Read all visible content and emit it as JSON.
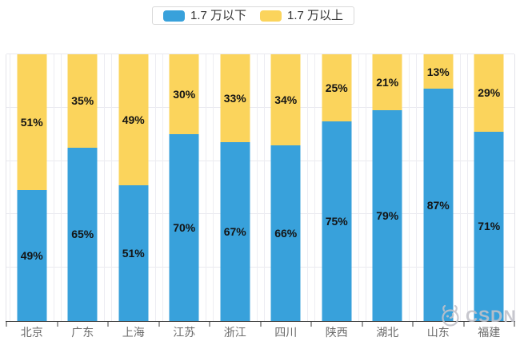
{
  "chart_data": {
    "type": "bar",
    "stacked": true,
    "orientation": "vertical",
    "categories": [
      "北京",
      "广东",
      "上海",
      "江苏",
      "浙江",
      "四川",
      "陕西",
      "湖北",
      "山东",
      "福建"
    ],
    "series": [
      {
        "name": "1.7 万以下",
        "color": "#38A1DB",
        "values": [
          49,
          65,
          51,
          70,
          67,
          66,
          75,
          79,
          87,
          71
        ],
        "labels": [
          "49%",
          "65%",
          "51%",
          "70%",
          "67%",
          "66%",
          "75%",
          "79%",
          "87%",
          "71%"
        ]
      },
      {
        "name": "1.7 万以上",
        "color": "#FBD45C",
        "values": [
          51,
          35,
          49,
          30,
          33,
          34,
          25,
          21,
          13,
          29
        ],
        "labels": [
          "51%",
          "35%",
          "49%",
          "30%",
          "33%",
          "34%",
          "25%",
          "21%",
          "13%",
          "29%"
        ]
      }
    ],
    "ylim": [
      0,
      100
    ],
    "value_unit": "%",
    "grid_interval_percent": 20,
    "grid": true,
    "legend_position": "top"
  },
  "watermark": {
    "text": "CSDN"
  },
  "colors": {
    "background": "#ffffff",
    "series_below": "#38A1DB",
    "series_above": "#FBD45C",
    "gridline": "#e9e9ef",
    "axis_line": "#3d3d3d",
    "axis_label": "#6b6b6b",
    "bar_label": "#141414",
    "legend_border": "#d9d9d9",
    "legend_text": "#333333",
    "watermark": "#c2c2c9"
  }
}
